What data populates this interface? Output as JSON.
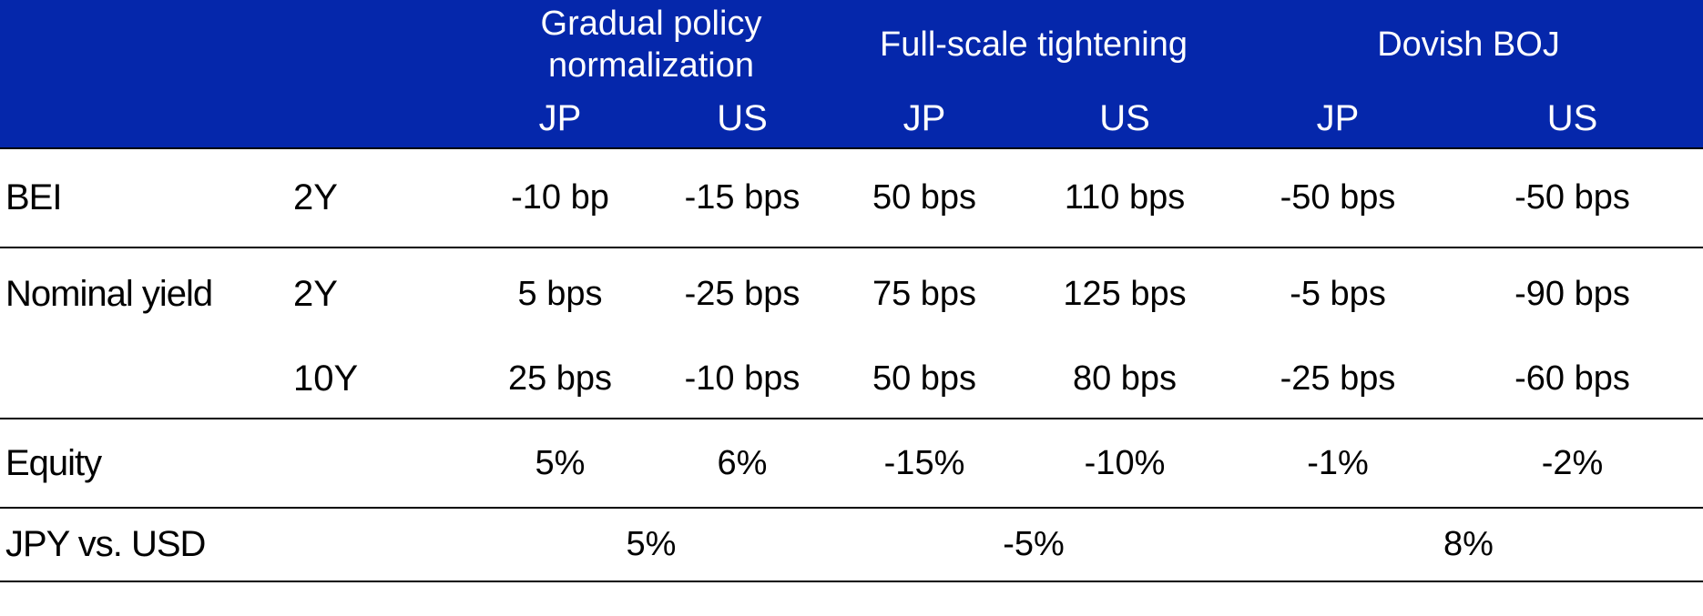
{
  "header": {
    "scenarios": [
      {
        "title": "Gradual policy normalization",
        "jp": "JP",
        "us": "US"
      },
      {
        "title": "Full-scale tightening",
        "jp": "JP",
        "us": "US"
      },
      {
        "title": "Dovish BOJ",
        "jp": "JP",
        "us": "US"
      }
    ]
  },
  "rows": {
    "bei": {
      "label": "BEI",
      "tenor": "2Y",
      "values": [
        "-10 bp",
        "-15 bps",
        "50 bps",
        "110 bps",
        "-50 bps",
        "-50 bps"
      ]
    },
    "nominal_2y": {
      "label": "Nominal yield",
      "tenor": "2Y",
      "values": [
        "5 bps",
        "-25 bps",
        "75 bps",
        "125 bps",
        "-5 bps",
        "-90 bps"
      ]
    },
    "nominal_10y": {
      "label": "",
      "tenor": "10Y",
      "values": [
        "25 bps",
        "-10 bps",
        "50 bps",
        "80 bps",
        "-25 bps",
        "-60 bps"
      ]
    },
    "equity": {
      "label": "Equity",
      "tenor": "",
      "values": [
        "5%",
        "6%",
        "-15%",
        "-10%",
        "-1%",
        "-2%"
      ]
    },
    "jpy_usd": {
      "label": "JPY vs. USD",
      "values": [
        "5%",
        "-5%",
        "8%"
      ]
    }
  },
  "colors": {
    "header_bg": "#0527ab",
    "header_text": "#ffffff",
    "rule": "#000000"
  }
}
